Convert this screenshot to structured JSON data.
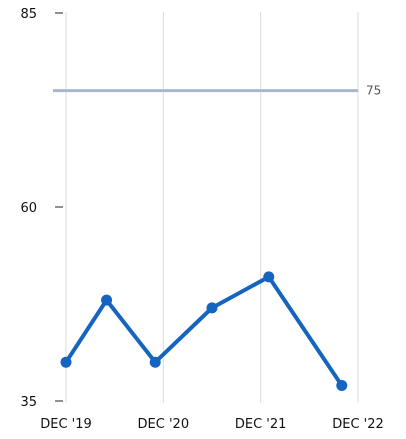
{
  "chart_data": {
    "type": "line",
    "title": "",
    "xlabel": "",
    "ylabel": "",
    "ylim": [
      35,
      85
    ],
    "yticks": [
      85,
      60,
      35
    ],
    "x_ticks": [
      "DEC '19",
      "DEC '20",
      "DEC '21",
      "DEC '22"
    ],
    "grid": "vertical",
    "series": [
      {
        "color": "#1565c0",
        "points": [
          {
            "x": "2019-12",
            "y": 40
          },
          {
            "x": "2020-05",
            "y": 48
          },
          {
            "x": "2020-11",
            "y": 40
          },
          {
            "x": "2021-06",
            "y": 47
          },
          {
            "x": "2022-01",
            "y": 51
          },
          {
            "x": "2022-10",
            "y": 37
          }
        ]
      }
    ],
    "reference_line": {
      "y": 75,
      "label": "75",
      "color": "#a9b6cc"
    }
  }
}
